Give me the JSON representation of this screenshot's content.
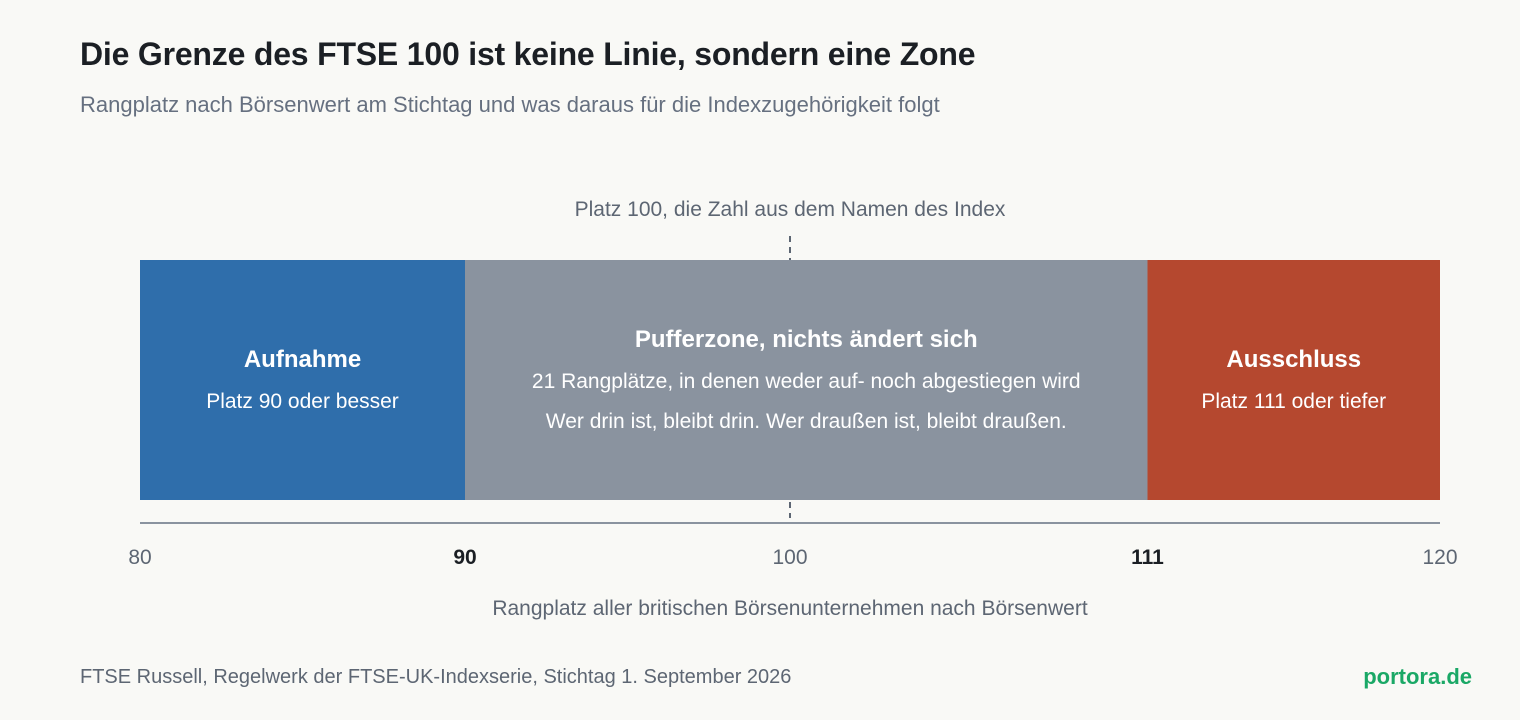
{
  "title": "Die Grenze des FTSE 100 ist keine Linie, sondern eine Zone",
  "subtitle": "Rangplatz nach Börsenwert am Stichtag und was daraus für die Indexzugehörigkeit folgt",
  "footer": {
    "source": "FTSE Russell, Regelwerk der FTSE-UK-Indexserie, Stichtag 1. September 2026",
    "brand": "portora.de"
  },
  "colors": {
    "aufnahme": "#2f6eab",
    "pufferzone": "#8a939f",
    "ausschluss": "#b5482f",
    "axis": "#8a939f",
    "brand": "#1aa866"
  },
  "chart_data": {
    "type": "bar",
    "orientation": "horizontal-segments",
    "xlim": [
      80,
      120
    ],
    "xlabel": "Rangplatz aller britischen Börsenunternehmen nach Börsenwert",
    "ticks": [
      {
        "value": 80,
        "label": "80",
        "bold": false
      },
      {
        "value": 90,
        "label": "90",
        "bold": true
      },
      {
        "value": 100,
        "label": "100",
        "bold": false
      },
      {
        "value": 111,
        "label": "111",
        "bold": true
      },
      {
        "value": 120,
        "label": "120",
        "bold": false
      }
    ],
    "reference": {
      "value": 100,
      "label": "Platz 100, die Zahl aus dem Namen des Index"
    },
    "segments": [
      {
        "start": 80,
        "end": 90,
        "color": "#2f6eab",
        "title": "Aufnahme",
        "lines": [
          "Platz 90 oder besser"
        ]
      },
      {
        "start": 90,
        "end": 111,
        "color": "#8a939f",
        "title": "Pufferzone, nichts ändert sich",
        "lines": [
          "21 Rangplätze, in denen weder auf- noch abgestiegen wird",
          "Wer drin ist, bleibt drin. Wer draußen ist, bleibt draußen."
        ]
      },
      {
        "start": 111,
        "end": 120,
        "color": "#b5482f",
        "title": "Ausschluss",
        "lines": [
          "Platz 111 oder tiefer"
        ]
      }
    ]
  }
}
